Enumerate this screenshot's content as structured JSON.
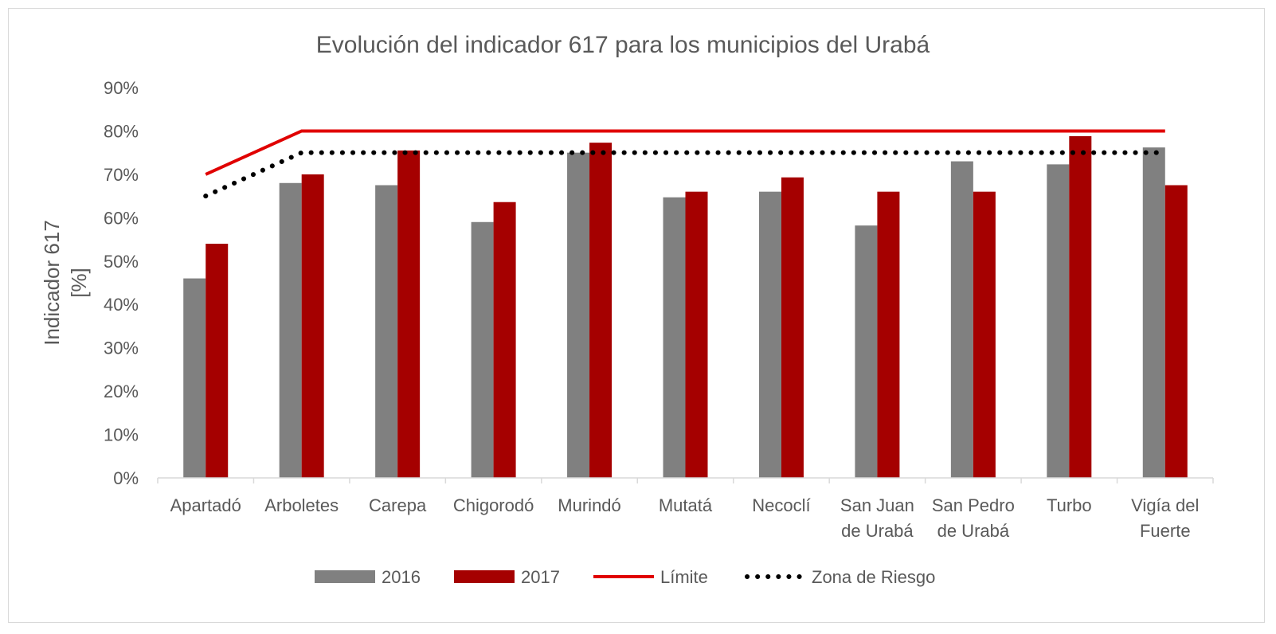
{
  "chart_data": {
    "type": "bar",
    "title": "Evolución del indicador 617 para los municipios del Urabá",
    "ylabel_lines": [
      "Indicador 617",
      "[%]"
    ],
    "xlabel": "",
    "ylim": [
      0,
      90
    ],
    "y_ticks": [
      0,
      10,
      20,
      30,
      40,
      50,
      60,
      70,
      80,
      90
    ],
    "y_tick_labels": [
      "0%",
      "10%",
      "20%",
      "30%",
      "40%",
      "50%",
      "60%",
      "70%",
      "80%",
      "90%"
    ],
    "categories": [
      [
        "Apartadó"
      ],
      [
        "Arboletes"
      ],
      [
        "Carepa"
      ],
      [
        "Chigorodó"
      ],
      [
        "Murindó"
      ],
      [
        "Mutatá"
      ],
      [
        "Necoclí"
      ],
      [
        "San Juan",
        "de Urabá"
      ],
      [
        "San Pedro",
        "de Urabá"
      ],
      [
        "Turbo"
      ],
      [
        "Vigía del",
        "Fuerte"
      ]
    ],
    "series": [
      {
        "name": "2016",
        "kind": "bar",
        "color": "#808080",
        "values": [
          46,
          68,
          67.5,
          59,
          75,
          64.7,
          66,
          58.2,
          73,
          72.3,
          76.2
        ]
      },
      {
        "name": "2017",
        "kind": "bar",
        "color": "#a50000",
        "values": [
          54,
          70,
          75.5,
          63.6,
          77.3,
          66,
          69.3,
          66,
          66,
          78.8,
          67.5
        ]
      },
      {
        "name": "Límite",
        "kind": "line",
        "color": "#e00000",
        "style": "solid",
        "values": [
          70,
          80,
          80,
          80,
          80,
          80,
          80,
          80,
          80,
          80,
          80
        ]
      },
      {
        "name": "Zona de Riesgo",
        "kind": "line",
        "color": "#000000",
        "style": "dotted",
        "values": [
          65,
          75,
          75,
          75,
          75,
          75,
          75,
          75,
          75,
          75,
          75
        ]
      }
    ],
    "grid": false,
    "legend_position": "bottom"
  }
}
